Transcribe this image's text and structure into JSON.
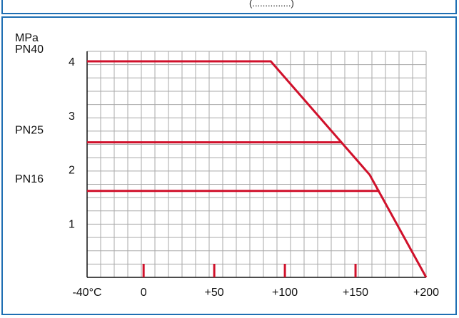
{
  "header": {
    "text": "(...............)"
  },
  "chart_data": {
    "type": "line",
    "ylabel": "MPa",
    "xlabel": "",
    "xlim": [
      -40,
      200
    ],
    "ylim": [
      0,
      4
    ],
    "x_tick_labels": [
      {
        "value": -40,
        "label": "-40°C"
      },
      {
        "value": 0,
        "label": "0"
      },
      {
        "value": 50,
        "label": "+50"
      },
      {
        "value": 100,
        "label": "+100"
      },
      {
        "value": 150,
        "label": "+150"
      },
      {
        "value": 200,
        "label": "+200"
      }
    ],
    "x_major_marks": [
      0,
      50,
      100,
      150
    ],
    "y_tick_labels": [
      {
        "value": 1,
        "label": "1"
      },
      {
        "value": 2,
        "label": "2"
      },
      {
        "value": 3,
        "label": "3"
      },
      {
        "value": 4,
        "label": "4"
      }
    ],
    "pressure_classes": [
      {
        "value": 4,
        "label": "PN40"
      },
      {
        "value": 2.5,
        "label": "PN25"
      },
      {
        "value": 1.6,
        "label": "PN16"
      }
    ],
    "grid": true,
    "series": [
      {
        "name": "PN40",
        "points": [
          [
            -40,
            4
          ],
          [
            90,
            4
          ],
          [
            160,
            1.9
          ],
          [
            200,
            0
          ]
        ]
      },
      {
        "name": "PN25",
        "points": [
          [
            -40,
            2.5
          ],
          [
            140,
            2.5
          ]
        ]
      },
      {
        "name": "PN16",
        "points": [
          [
            -40,
            1.6
          ],
          [
            167,
            1.6
          ]
        ]
      }
    ],
    "line_color": "#d0112b",
    "grid_color": "#a9a9a9"
  }
}
